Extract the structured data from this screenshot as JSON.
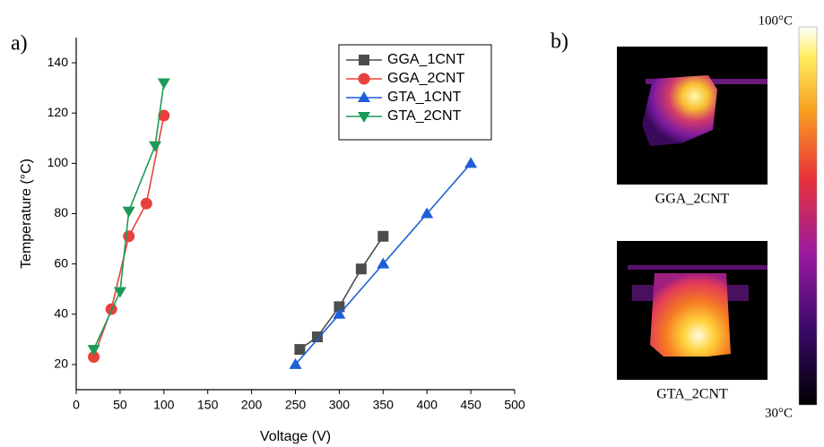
{
  "chart_data": {
    "type": "scatter-line",
    "xlabel": "Voltage (V)",
    "ylabel": "Temperature (°C)",
    "xlim": [
      0,
      500
    ],
    "xticks": [
      0,
      50,
      100,
      150,
      200,
      250,
      300,
      350,
      400,
      450,
      500
    ],
    "ylim": [
      10,
      150
    ],
    "yticks": [
      20,
      40,
      60,
      80,
      100,
      120,
      140
    ],
    "legend": "upper-right",
    "series": [
      {
        "name": "GGA_1CNT",
        "color": "#4d4d4d",
        "marker": "square",
        "x": [
          255,
          275,
          300,
          325,
          350
        ],
        "values": [
          26,
          31,
          43,
          58,
          71
        ]
      },
      {
        "name": "GGA_2CNT",
        "color": "#e8413c",
        "marker": "circle",
        "x": [
          20,
          40,
          60,
          80,
          100
        ],
        "values": [
          23,
          42,
          71,
          84,
          119
        ]
      },
      {
        "name": "GTA_1CNT",
        "color": "#1c5fd6",
        "marker": "triangle-up",
        "x": [
          250,
          300,
          350,
          400,
          450
        ],
        "values": [
          20,
          40,
          60,
          80,
          100
        ]
      },
      {
        "name": "GTA_2CNT",
        "color": "#1b9a58",
        "marker": "triangle-down",
        "x": [
          20,
          50,
          60,
          90,
          100
        ],
        "values": [
          26,
          49,
          81,
          107,
          132
        ]
      }
    ]
  },
  "panel_labels": [
    "a)",
    "b)"
  ],
  "thermal": {
    "images": [
      {
        "label": "GGA_2CNT"
      },
      {
        "label": "GTA_2CNT"
      }
    ],
    "scale_max": "100°C",
    "scale_min": "30°C"
  }
}
